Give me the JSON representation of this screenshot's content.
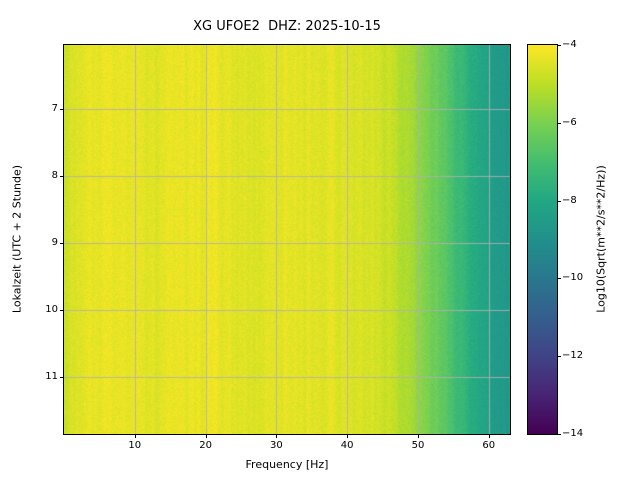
{
  "title": "XG UFOE2  DHZ: 2025-10-15",
  "xlabel": "Frequency [Hz]",
  "ylabel": "Lokalzeit (UTC + 2 Stunde)",
  "colorbar": {
    "label": "Log10(Sqrt(m**2/s**2/Hz))",
    "tick_labels": [
      "−4",
      "−6",
      "−8",
      "−10",
      "−12",
      "−14"
    ],
    "tick_values": [
      -4,
      -6,
      -8,
      -10,
      -12,
      -14
    ],
    "vmin": -14,
    "vmax": -4
  },
  "chart_data": {
    "type": "heatmap",
    "title": "XG UFOE2  DHZ: 2025-10-15",
    "xlabel": "Frequency [Hz]",
    "ylabel": "Lokalzeit (UTC + 2 Stunde)",
    "value_label": "Log10(Sqrt(m**2/s**2/Hz))",
    "x_range": [
      0,
      63
    ],
    "y_range": [
      6.05,
      11.85
    ],
    "x_ticks": [
      10,
      20,
      30,
      40,
      50,
      60
    ],
    "x_tick_labels": [
      "10",
      "20",
      "30",
      "40",
      "50",
      "60"
    ],
    "y_ticks": [
      7,
      8,
      9,
      10,
      11
    ],
    "y_tick_labels": [
      "7",
      "8",
      "9",
      "10",
      "11"
    ],
    "value_range": [
      -14,
      -4
    ],
    "colormap": "viridis",
    "colormap_stops": [
      [
        0.0,
        "#440154"
      ],
      [
        0.1,
        "#482475"
      ],
      [
        0.2,
        "#414487"
      ],
      [
        0.3,
        "#355f8d"
      ],
      [
        0.4,
        "#2a788e"
      ],
      [
        0.5,
        "#21918c"
      ],
      [
        0.6,
        "#22a884"
      ],
      [
        0.7,
        "#44bf70"
      ],
      [
        0.8,
        "#7ad151"
      ],
      [
        0.9,
        "#bddf26"
      ],
      [
        1.0,
        "#fde725"
      ]
    ],
    "grid": true,
    "grid_color": "#b0b0b0",
    "spectral_profile": {
      "description": "Mean Log10(Sqrt(m**2/s**2/Hz)) versus frequency; nearly constant bright level up to ~45 Hz then roll-off toward 63 Hz",
      "frequencies_hz": [
        0,
        1,
        3,
        8,
        12,
        18,
        25,
        32,
        38,
        42,
        45,
        47,
        49,
        51,
        53,
        55,
        57,
        59,
        61,
        63
      ],
      "log10_sqrt_psd": [
        -5.0,
        -4.5,
        -4.35,
        -4.3,
        -4.4,
        -4.3,
        -4.45,
        -4.4,
        -4.5,
        -4.55,
        -4.7,
        -5.0,
        -5.4,
        -5.9,
        -6.4,
        -7.0,
        -7.6,
        -8.1,
        -8.5,
        -8.8
      ]
    },
    "noise": {
      "column_striation_amplitude": 0.25,
      "pixel_speckle_amplitude": 0.45
    }
  }
}
